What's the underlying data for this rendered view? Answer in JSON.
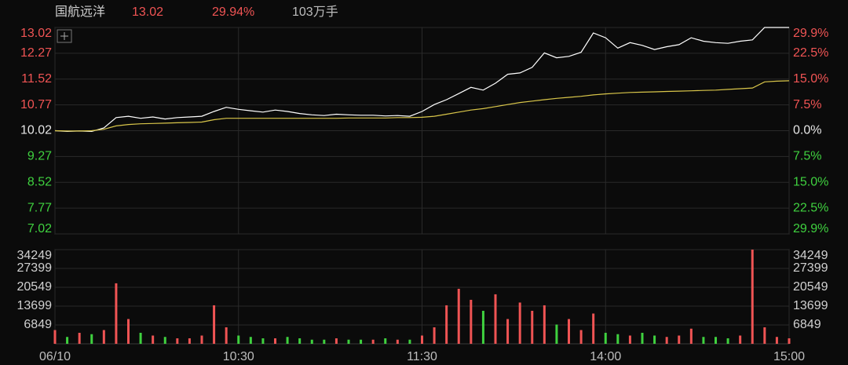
{
  "header": {
    "name": "国航远洋",
    "price": "13.02",
    "change": "29.94%",
    "volume": "103万手"
  },
  "chart_data": [
    {
      "type": "line",
      "x": [
        0,
        4,
        8,
        12,
        16,
        20,
        24,
        28,
        32,
        36,
        40,
        44,
        48,
        52,
        56,
        60,
        64,
        68,
        72,
        76,
        80,
        84,
        88,
        92,
        96,
        100,
        104,
        108,
        112,
        116,
        120,
        124,
        128,
        132,
        136,
        140,
        144,
        148,
        152,
        156,
        160,
        164,
        168,
        172,
        176,
        180,
        184,
        188,
        192,
        196,
        200,
        204,
        208,
        212,
        216,
        220,
        224,
        228,
        232,
        236,
        240
      ],
      "xlim": [
        0,
        240
      ],
      "xticks": [
        {
          "value": 0,
          "label": "06/10"
        },
        {
          "value": 60,
          "label": "10:30"
        },
        {
          "value": 120,
          "label": "11:30"
        },
        {
          "value": 180,
          "label": "14:00"
        },
        {
          "value": 240,
          "label": "15:00"
        }
      ],
      "ylim": [
        7.02,
        13.02
      ],
      "yticks": [
        13.02,
        12.27,
        11.52,
        10.77,
        10.02,
        9.27,
        8.52,
        7.77,
        7.02
      ],
      "y2lim": [
        -29.94,
        29.94
      ],
      "y2ticks": [
        {
          "value": 29.9,
          "label": "29.9%"
        },
        {
          "value": 22.5,
          "label": "22.5%"
        },
        {
          "value": 15,
          "label": "15.0%"
        },
        {
          "value": 7.5,
          "label": "7.5%"
        },
        {
          "value": 0,
          "label": "0.0%"
        },
        {
          "value": -7.5,
          "label": "7.5%"
        },
        {
          "value": -15,
          "label": "15.0%"
        },
        {
          "value": -22.5,
          "label": "22.5%"
        },
        {
          "value": -29.9,
          "label": "29.9%"
        }
      ],
      "up_color": "#f05454",
      "down_color": "#3fd13f",
      "grid": true,
      "series": [
        {
          "color": "#ffffff",
          "values": [
            10.02,
            10.0,
            10.01,
            10.0,
            10.1,
            10.4,
            10.44,
            10.38,
            10.42,
            10.36,
            10.4,
            10.42,
            10.44,
            10.58,
            10.7,
            10.64,
            10.6,
            10.56,
            10.62,
            10.58,
            10.52,
            10.48,
            10.46,
            10.5,
            10.48,
            10.47,
            10.47,
            10.45,
            10.46,
            10.44,
            10.58,
            10.78,
            10.92,
            11.1,
            11.28,
            11.2,
            11.4,
            11.66,
            11.7,
            11.86,
            12.28,
            12.14,
            12.18,
            12.3,
            12.86,
            12.72,
            12.42,
            12.58,
            12.5,
            12.38,
            12.46,
            12.52,
            12.72,
            12.62,
            12.58,
            12.56,
            12.62,
            12.66,
            13.02,
            13.02,
            13.02
          ]
        },
        {
          "color": "#d9c64a",
          "values": [
            10.02,
            10.01,
            10.01,
            10.02,
            10.06,
            10.16,
            10.2,
            10.22,
            10.23,
            10.24,
            10.25,
            10.26,
            10.27,
            10.34,
            10.38,
            10.38,
            10.38,
            10.38,
            10.38,
            10.38,
            10.38,
            10.38,
            10.38,
            10.38,
            10.39,
            10.39,
            10.39,
            10.39,
            10.4,
            10.4,
            10.41,
            10.44,
            10.5,
            10.56,
            10.62,
            10.66,
            10.72,
            10.78,
            10.84,
            10.88,
            10.92,
            10.96,
            10.99,
            11.02,
            11.06,
            11.09,
            11.11,
            11.13,
            11.14,
            11.15,
            11.16,
            11.17,
            11.18,
            11.19,
            11.2,
            11.22,
            11.24,
            11.26,
            11.44,
            11.46,
            11.47
          ]
        }
      ]
    },
    {
      "type": "bar",
      "ylim": [
        0,
        34249
      ],
      "yticks": [
        34249,
        27399,
        20549,
        13699,
        6849
      ],
      "values": [
        5000,
        2500,
        4000,
        3500,
        5000,
        22000,
        9000,
        4000,
        3000,
        2500,
        2000,
        2000,
        3000,
        14000,
        6000,
        3000,
        2500,
        2000,
        2000,
        2500,
        2000,
        1500,
        1500,
        2000,
        1500,
        1500,
        1500,
        2000,
        1500,
        1500,
        3000,
        6000,
        14000,
        20000,
        16000,
        12000,
        18000,
        9000,
        15000,
        12000,
        14000,
        7000,
        9000,
        5000,
        11000,
        4000,
        3500,
        3000,
        4000,
        3000,
        2500,
        3000,
        5500,
        2500,
        2500,
        2000,
        3000,
        34249,
        6000,
        2500,
        2000
      ]
    }
  ]
}
